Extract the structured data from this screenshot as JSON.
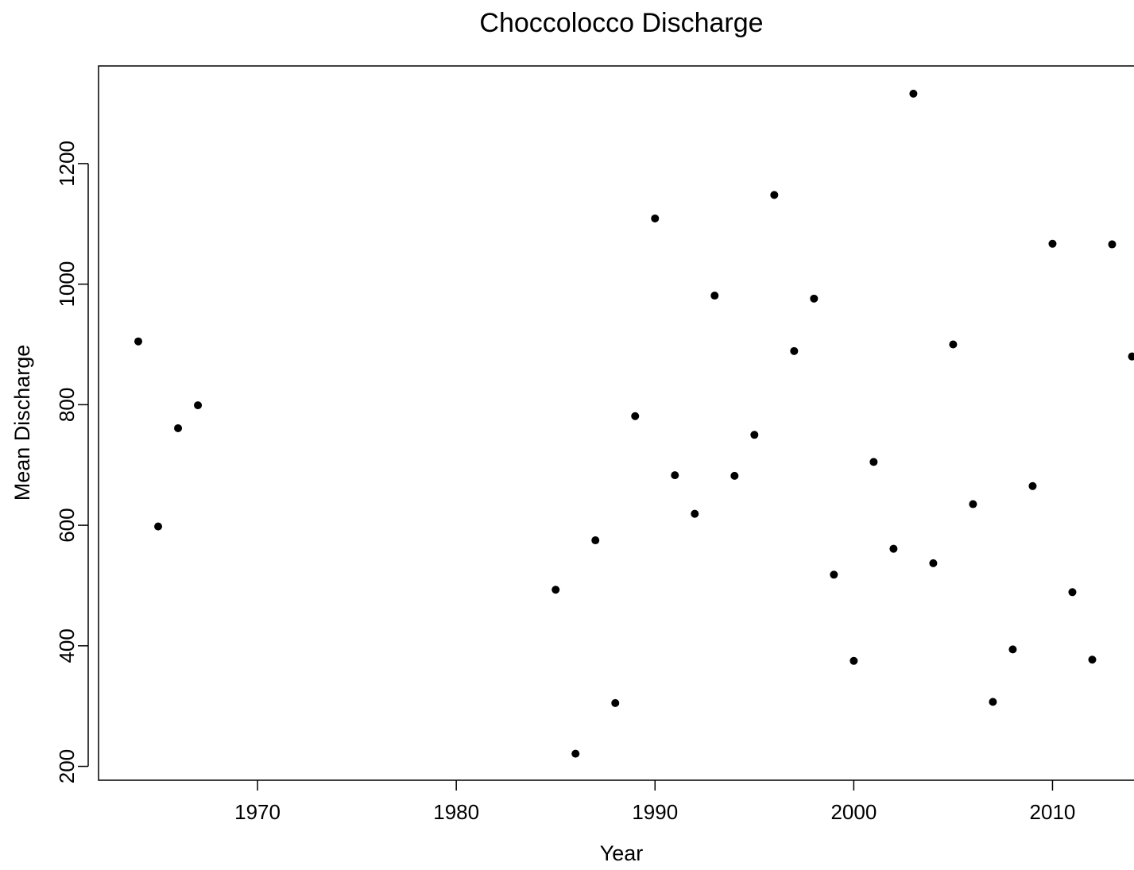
{
  "chart_data": {
    "type": "scatter",
    "title": "Choccolocco Discharge",
    "xlabel": "Year",
    "ylabel": "Mean Discharge",
    "xlim": [
      1962,
      2014.5
    ],
    "ylim": [
      177,
      1362
    ],
    "x_ticks": [
      1970,
      1980,
      1990,
      2000,
      2010
    ],
    "y_ticks": [
      200,
      400,
      600,
      800,
      1000,
      1200
    ],
    "grid": false,
    "legend": "none",
    "marker_color": "#000000",
    "series": [
      {
        "points": [
          {
            "x": 1964,
            "y": 905
          },
          {
            "x": 1965,
            "y": 598
          },
          {
            "x": 1966,
            "y": 761
          },
          {
            "x": 1967,
            "y": 799
          },
          {
            "x": 1985,
            "y": 493
          },
          {
            "x": 1986,
            "y": 221
          },
          {
            "x": 1987,
            "y": 575
          },
          {
            "x": 1988,
            "y": 305
          },
          {
            "x": 1989,
            "y": 781
          },
          {
            "x": 1990,
            "y": 1109
          },
          {
            "x": 1991,
            "y": 683
          },
          {
            "x": 1992,
            "y": 619
          },
          {
            "x": 1993,
            "y": 981
          },
          {
            "x": 1994,
            "y": 682
          },
          {
            "x": 1995,
            "y": 750
          },
          {
            "x": 1996,
            "y": 1148
          },
          {
            "x": 1997,
            "y": 889
          },
          {
            "x": 1998,
            "y": 976
          },
          {
            "x": 1999,
            "y": 518
          },
          {
            "x": 2000,
            "y": 375
          },
          {
            "x": 2001,
            "y": 705
          },
          {
            "x": 2002,
            "y": 561
          },
          {
            "x": 2003,
            "y": 1316
          },
          {
            "x": 2004,
            "y": 537
          },
          {
            "x": 2005,
            "y": 900
          },
          {
            "x": 2006,
            "y": 635
          },
          {
            "x": 2007,
            "y": 307
          },
          {
            "x": 2008,
            "y": 394
          },
          {
            "x": 2009,
            "y": 665
          },
          {
            "x": 2010,
            "y": 1067
          },
          {
            "x": 2011,
            "y": 489
          },
          {
            "x": 2012,
            "y": 377
          },
          {
            "x": 2013,
            "y": 1066
          },
          {
            "x": 2014,
            "y": 880
          }
        ]
      }
    ]
  }
}
